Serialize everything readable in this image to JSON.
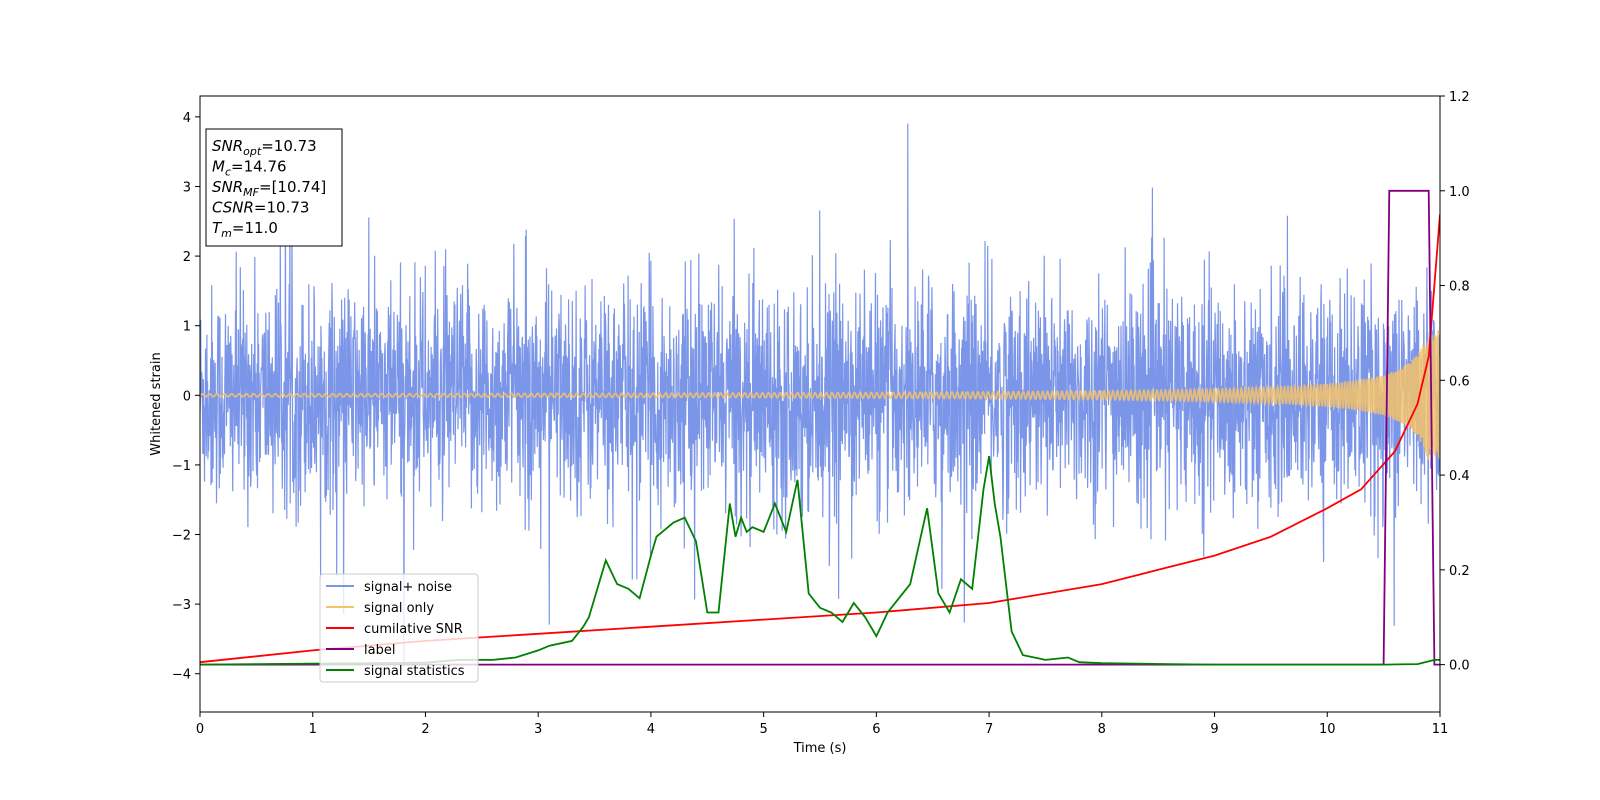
{
  "chart_data": {
    "type": "line",
    "xlabel": "Time (s)",
    "ylabel": "Whitened strain",
    "xlim": [
      0,
      11
    ],
    "ylim": [
      -4.55,
      4.3
    ],
    "y2lim": [
      -0.1,
      1.2
    ],
    "x_ticks": [
      0,
      1,
      2,
      3,
      4,
      5,
      6,
      7,
      8,
      9,
      10,
      11
    ],
    "y_ticks": [
      4,
      3,
      2,
      1,
      0,
      -1,
      -2,
      -3,
      -4
    ],
    "y2_ticks": [
      "0.0",
      "0.2",
      "0.4",
      "0.6",
      "0.8",
      "1.0",
      "1.2"
    ],
    "grid": false,
    "legend_position": "lower-left",
    "annotations": [
      {
        "base": "SNR",
        "sub": "opt",
        "value": "=10.73"
      },
      {
        "base": "M",
        "sub": "c",
        "value": "=14.76"
      },
      {
        "base": "SNR",
        "sub": "MF",
        "value": "=[10.74]"
      },
      {
        "base": "CSNR",
        "sub": "",
        "value": "=10.73"
      },
      {
        "base": "T",
        "sub": "m",
        "value": "=11.0"
      }
    ],
    "series": [
      {
        "name": "signal+ noise",
        "color": "#7b96e8",
        "axis": "left",
        "kind": "noise",
        "x_range": [
          0,
          11
        ],
        "envelope": "approx ±1.5 typical, spikes to ±3.9"
      },
      {
        "name": "signal only",
        "color": "#f5c26b",
        "axis": "left",
        "kind": "chirp",
        "x_range": [
          0,
          11
        ],
        "amplitude_start": 0.02,
        "amplitude_end": 0.95
      },
      {
        "name": "cumilative SNR",
        "color": "#ff0000",
        "axis": "right",
        "x": [
          0,
          1,
          2,
          3,
          4,
          5,
          6,
          7,
          8,
          8.5,
          9,
          9.5,
          10,
          10.3,
          10.6,
          10.8,
          10.9,
          11
        ],
        "y": [
          0.005,
          0.03,
          0.05,
          0.065,
          0.08,
          0.095,
          0.11,
          0.13,
          0.17,
          0.2,
          0.23,
          0.27,
          0.33,
          0.37,
          0.45,
          0.55,
          0.65,
          0.95
        ]
      },
      {
        "name": "label",
        "color": "#800080",
        "axis": "right",
        "x": [
          0,
          10.5,
          10.55,
          10.9,
          10.95,
          11
        ],
        "y": [
          0,
          0,
          1.0,
          1.0,
          0.0,
          0.0
        ]
      },
      {
        "name": "signal statistics",
        "color": "#008000",
        "axis": "right",
        "x": [
          0,
          0.5,
          1,
          1.5,
          2,
          2.3,
          2.6,
          2.8,
          3.0,
          3.1,
          3.3,
          3.4,
          3.45,
          3.6,
          3.7,
          3.8,
          3.9,
          4.0,
          4.05,
          4.2,
          4.3,
          4.4,
          4.5,
          4.6,
          4.7,
          4.75,
          4.8,
          4.85,
          4.9,
          5.0,
          5.1,
          5.2,
          5.3,
          5.4,
          5.5,
          5.6,
          5.7,
          5.8,
          5.9,
          6.0,
          6.1,
          6.3,
          6.45,
          6.55,
          6.65,
          6.75,
          6.85,
          6.95,
          7.0,
          7.05,
          7.1,
          7.2,
          7.3,
          7.5,
          7.7,
          7.8,
          8.0,
          8.3,
          8.6,
          9.0,
          9.5,
          10.0,
          10.5,
          10.8,
          10.95,
          11
        ],
        "y": [
          0.0,
          0.001,
          0.002,
          0.003,
          0.004,
          0.01,
          0.01,
          0.015,
          0.03,
          0.04,
          0.05,
          0.08,
          0.1,
          0.22,
          0.17,
          0.16,
          0.14,
          0.23,
          0.27,
          0.3,
          0.31,
          0.26,
          0.11,
          0.11,
          0.34,
          0.27,
          0.31,
          0.28,
          0.29,
          0.28,
          0.34,
          0.28,
          0.39,
          0.15,
          0.12,
          0.11,
          0.09,
          0.13,
          0.1,
          0.06,
          0.11,
          0.17,
          0.33,
          0.15,
          0.11,
          0.18,
          0.16,
          0.37,
          0.44,
          0.34,
          0.27,
          0.07,
          0.02,
          0.01,
          0.015,
          0.005,
          0.003,
          0.002,
          0.001,
          0.0,
          0.0,
          0.0,
          0.0,
          0.001,
          0.01,
          0.01
        ]
      }
    ]
  }
}
